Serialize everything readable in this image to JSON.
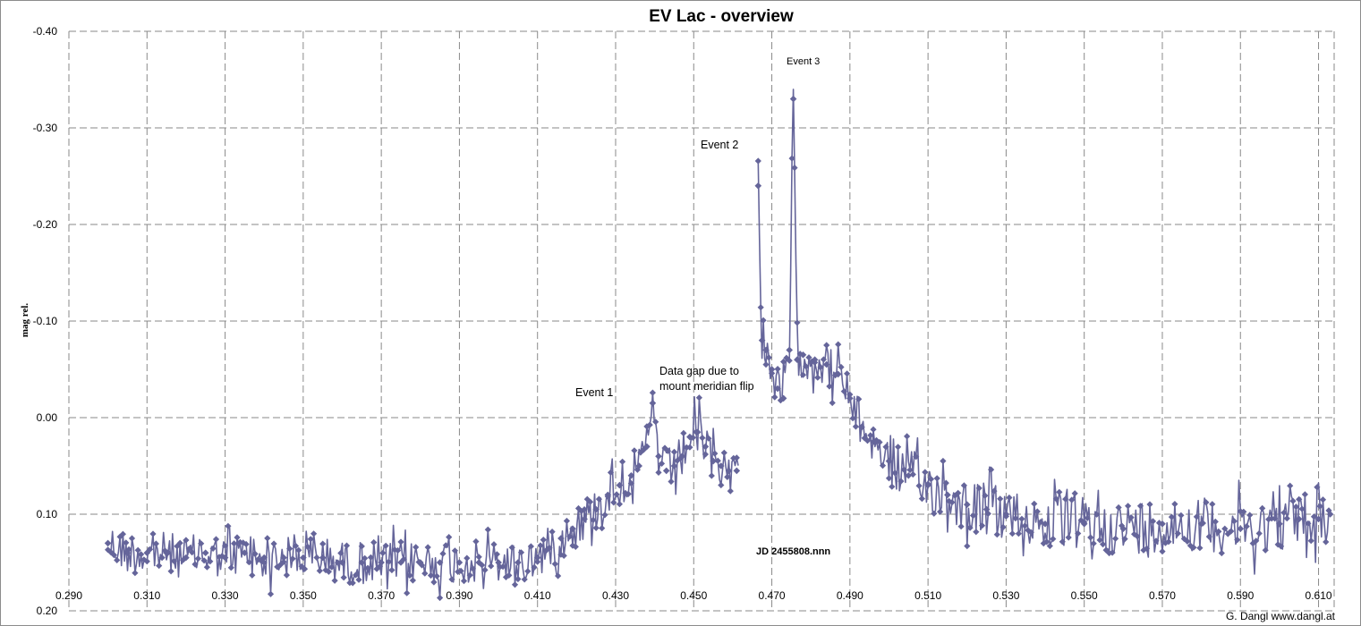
{
  "chart_data": {
    "type": "line",
    "title": "EV Lac - overview",
    "ylabel": "mag rel.",
    "xlabel": "JD 2455808.nnn",
    "xlim": [
      0.29,
      0.614
    ],
    "ylim": [
      0.2,
      -0.4
    ],
    "y_reversed": true,
    "x_tick_labels": [
      "0.290",
      "0.310",
      "0.330",
      "0.350",
      "0.370",
      "0.390",
      "0.410",
      "0.430",
      "0.450",
      "0.470",
      "0.490",
      "0.510",
      "0.530",
      "0.550",
      "0.570",
      "0.590",
      "0.610"
    ],
    "y_tick_labels": [
      "-0.40",
      "-0.30",
      "-0.20",
      "-0.10",
      "0.00",
      "0.10",
      "0.20"
    ],
    "grid": true,
    "marker": "diamond",
    "series_color": "#65659a",
    "series": [
      {
        "x": [
          0.3,
          0.305,
          0.31,
          0.315,
          0.32,
          0.325,
          0.33,
          0.335,
          0.34,
          0.345,
          0.35,
          0.355,
          0.36,
          0.365,
          0.37,
          0.375,
          0.38,
          0.385,
          0.39,
          0.395,
          0.4,
          0.405,
          0.41,
          0.413,
          0.416,
          0.419,
          0.422,
          0.425,
          0.428,
          0.431,
          0.434,
          0.436,
          0.438,
          0.4395,
          0.441,
          0.443,
          0.445,
          0.447,
          0.449,
          0.451,
          0.453,
          0.455,
          0.457,
          0.459,
          0.461,
          0.4665,
          0.4675,
          0.4685,
          0.47,
          0.4715,
          0.473,
          0.4745,
          0.4755,
          0.4765,
          0.478,
          0.481,
          0.484,
          0.487,
          0.49,
          0.493,
          0.496,
          0.5,
          0.505,
          0.51,
          0.515,
          0.52,
          0.525,
          0.53,
          0.54,
          0.55,
          0.56,
          0.57,
          0.58,
          0.59,
          0.6,
          0.605,
          0.61,
          0.613
        ],
        "y": [
          0.13,
          0.14,
          0.14,
          0.14,
          0.145,
          0.14,
          0.145,
          0.14,
          0.145,
          0.145,
          0.145,
          0.145,
          0.15,
          0.15,
          0.15,
          0.15,
          0.15,
          0.15,
          0.15,
          0.15,
          0.15,
          0.15,
          0.145,
          0.135,
          0.125,
          0.115,
          0.105,
          0.095,
          0.08,
          0.07,
          0.06,
          0.05,
          0.03,
          -0.015,
          0.04,
          0.055,
          0.05,
          0.04,
          0.02,
          0.015,
          0.03,
          0.045,
          0.05,
          0.055,
          0.055,
          -0.24,
          -0.08,
          -0.07,
          -0.05,
          -0.03,
          -0.02,
          -0.07,
          -0.33,
          -0.06,
          -0.065,
          -0.06,
          -0.055,
          -0.045,
          -0.02,
          0.01,
          0.025,
          0.045,
          0.06,
          0.07,
          0.08,
          0.09,
          0.095,
          0.1,
          0.11,
          0.11,
          0.115,
          0.11,
          0.11,
          0.115,
          0.11,
          0.105,
          0.105,
          0.1
        ]
      }
    ],
    "annotations": [
      {
        "text": "Event 1"
      },
      {
        "text": "Data gap due to"
      },
      {
        "text": "mount  meridian flip"
      },
      {
        "text": "Event 2"
      },
      {
        "text": "Event  3"
      }
    ],
    "credit": "G. Dangl   www.dangl.at"
  }
}
